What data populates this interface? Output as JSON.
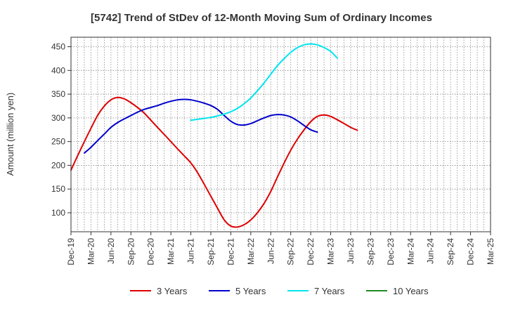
{
  "chart_data": {
    "type": "line",
    "title": "[5742]  Trend of StDev of 12-Month Moving Sum of Ordinary Incomes",
    "xlabel": "",
    "ylabel": "Amount (million yen)",
    "x_categories": [
      "Dec-19",
      "Mar-20",
      "Jun-20",
      "Sep-20",
      "Dec-20",
      "Mar-21",
      "Jun-21",
      "Sep-21",
      "Dec-21",
      "Mar-22",
      "Jun-22",
      "Sep-22",
      "Dec-22",
      "Mar-23",
      "Jun-23",
      "Sep-23",
      "Dec-23",
      "Mar-24",
      "Jun-24",
      "Sep-24",
      "Dec-24",
      "Mar-25"
    ],
    "ylim": [
      60,
      470
    ],
    "yticks": [
      100,
      150,
      200,
      250,
      300,
      350,
      400,
      450
    ],
    "grid": true,
    "legend_position": "bottom",
    "series": [
      {
        "name": "3 Years",
        "color": "#dd0000",
        "points": [
          [
            0,
            190
          ],
          [
            0.33,
            220
          ],
          [
            0.67,
            250
          ],
          [
            1,
            278
          ],
          [
            1.33,
            305
          ],
          [
            1.67,
            325
          ],
          [
            2,
            338
          ],
          [
            2.33,
            343
          ],
          [
            2.67,
            340
          ],
          [
            3,
            332
          ],
          [
            3.33,
            322
          ],
          [
            3.67,
            310
          ],
          [
            4,
            295
          ],
          [
            4.33,
            280
          ],
          [
            4.67,
            265
          ],
          [
            5,
            250
          ],
          [
            5.33,
            235
          ],
          [
            5.67,
            220
          ],
          [
            6,
            205
          ],
          [
            6.33,
            185
          ],
          [
            6.67,
            160
          ],
          [
            7,
            135
          ],
          [
            7.33,
            110
          ],
          [
            7.67,
            85
          ],
          [
            8,
            72
          ],
          [
            8.33,
            70
          ],
          [
            8.67,
            75
          ],
          [
            9,
            85
          ],
          [
            9.33,
            100
          ],
          [
            9.67,
            120
          ],
          [
            10,
            145
          ],
          [
            10.33,
            175
          ],
          [
            10.67,
            205
          ],
          [
            11,
            232
          ],
          [
            11.33,
            255
          ],
          [
            11.67,
            275
          ],
          [
            12,
            292
          ],
          [
            12.33,
            303
          ],
          [
            12.67,
            306
          ],
          [
            13,
            303
          ],
          [
            13.33,
            296
          ],
          [
            13.67,
            288
          ],
          [
            14,
            280
          ],
          [
            14.33,
            274
          ]
        ]
      },
      {
        "name": "5 Years",
        "color": "#0000cc",
        "points": [
          [
            0.67,
            226
          ],
          [
            1,
            238
          ],
          [
            1.33,
            252
          ],
          [
            1.67,
            266
          ],
          [
            2,
            280
          ],
          [
            2.33,
            290
          ],
          [
            2.67,
            298
          ],
          [
            3,
            305
          ],
          [
            3.33,
            312
          ],
          [
            3.67,
            318
          ],
          [
            4,
            322
          ],
          [
            4.33,
            326
          ],
          [
            4.67,
            331
          ],
          [
            5,
            335
          ],
          [
            5.33,
            338
          ],
          [
            5.67,
            339
          ],
          [
            6,
            338
          ],
          [
            6.33,
            335
          ],
          [
            6.67,
            331
          ],
          [
            7,
            326
          ],
          [
            7.33,
            318
          ],
          [
            7.67,
            305
          ],
          [
            8,
            293
          ],
          [
            8.33,
            286
          ],
          [
            8.67,
            285
          ],
          [
            9,
            288
          ],
          [
            9.33,
            294
          ],
          [
            9.67,
            300
          ],
          [
            10,
            305
          ],
          [
            10.33,
            307
          ],
          [
            10.67,
            306
          ],
          [
            11,
            302
          ],
          [
            11.33,
            294
          ],
          [
            11.67,
            284
          ],
          [
            12,
            275
          ],
          [
            12.33,
            270
          ]
        ]
      },
      {
        "name": "7 Years",
        "color": "#00e5ee",
        "points": [
          [
            6,
            295
          ],
          [
            6.33,
            297
          ],
          [
            6.67,
            299
          ],
          [
            7,
            301
          ],
          [
            7.33,
            304
          ],
          [
            7.67,
            308
          ],
          [
            8,
            313
          ],
          [
            8.33,
            320
          ],
          [
            8.67,
            330
          ],
          [
            9,
            342
          ],
          [
            9.33,
            357
          ],
          [
            9.67,
            374
          ],
          [
            10,
            392
          ],
          [
            10.33,
            410
          ],
          [
            10.67,
            425
          ],
          [
            11,
            438
          ],
          [
            11.33,
            448
          ],
          [
            11.67,
            454
          ],
          [
            12,
            456
          ],
          [
            12.33,
            454
          ],
          [
            12.67,
            448
          ],
          [
            13,
            440
          ],
          [
            13.33,
            426
          ]
        ]
      },
      {
        "name": "10 Years",
        "color": "#228b22",
        "points": []
      }
    ]
  }
}
